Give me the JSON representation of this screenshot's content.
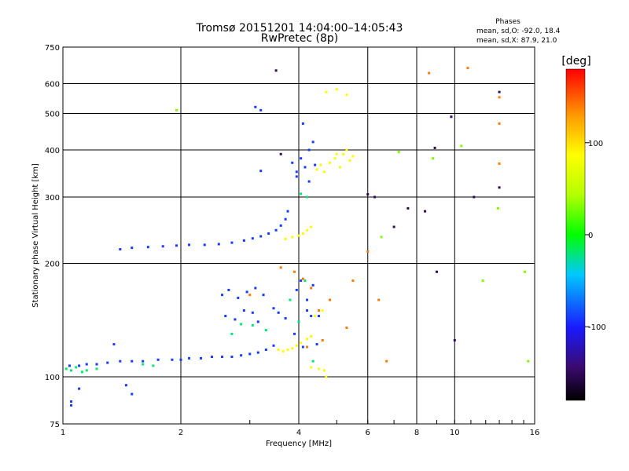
{
  "chart_data": {
    "type": "scatter",
    "title": "Tromsø 20151201 14:04:00–14:05:43",
    "subtitle": "RwPretec (8p)",
    "xlabel": "Frequency [MHz]",
    "ylabel": "Stationary phase Virtual Height [km]",
    "x_scale": "log",
    "y_scale": "log",
    "xlim": [
      1,
      16
    ],
    "ylim": [
      75,
      750
    ],
    "x_ticks": [
      1,
      2,
      4,
      6,
      8,
      10,
      16
    ],
    "x_tick_labels": [
      "1",
      "2",
      "4",
      "6",
      "8",
      "10",
      "16"
    ],
    "y_ticks": [
      75,
      100,
      200,
      300,
      400,
      500,
      600,
      750
    ],
    "y_tick_labels": [
      "75",
      "100",
      "200",
      "300",
      "400",
      "500",
      "600",
      "750"
    ],
    "grid": true,
    "colorbar": {
      "label": "[deg]",
      "range": [
        -180,
        180
      ],
      "tick_values": [
        100,
        0,
        -100
      ],
      "tick_labels": [
        "100",
        "0",
        "-100"
      ]
    },
    "stats": {
      "header": "Phases",
      "lines": [
        "mean, sd,O: -92.0, 18.4",
        "mean, sd,X: 87.9, 21.0"
      ]
    },
    "series": [
      {
        "color_value": -90,
        "x": [
          1.04,
          1.1,
          1.15,
          1.22,
          1.3,
          1.4,
          1.5,
          1.6,
          1.75,
          1.9,
          2.0,
          2.1,
          2.25,
          2.4,
          2.55,
          2.7,
          2.85,
          3.0,
          3.15,
          3.3,
          3.45,
          1.4,
          1.5,
          1.65,
          1.8,
          1.95,
          2.1,
          2.3,
          2.5,
          2.7,
          2.9,
          3.05,
          3.2,
          3.35,
          3.5,
          3.6,
          3.7,
          3.75,
          2.55,
          2.65,
          2.8,
          2.95,
          3.1,
          3.25,
          2.6,
          2.75,
          2.9,
          3.05,
          3.15,
          3.45,
          3.55,
          3.7,
          3.2,
          3.85,
          3.95,
          4.05,
          4.15,
          4.25,
          4.35,
          3.95,
          4.1,
          4.25,
          4.4,
          3.95,
          4.05,
          4.2,
          4.35,
          4.2,
          3.9,
          4.0,
          4.1,
          3.1,
          3.2,
          1.05,
          1.35,
          1.1,
          1.05,
          1.45,
          1.5,
          4.3,
          4.5,
          4.45
        ],
        "y": [
          107,
          107,
          108,
          108,
          109,
          110,
          110,
          110,
          111,
          111,
          111,
          112,
          112,
          113,
          113,
          113,
          114,
          115,
          116,
          118,
          121,
          218,
          220,
          221,
          222,
          223,
          224,
          224,
          225,
          227,
          230,
          233,
          236,
          240,
          245,
          252,
          262,
          275,
          165,
          170,
          162,
          168,
          172,
          165,
          145,
          142,
          150,
          148,
          140,
          152,
          148,
          143,
          352,
          370,
          350,
          380,
          360,
          400,
          420,
          340,
          470,
          330,
          365,
          170,
          180,
          160,
          175,
          150,
          130,
          140,
          120,
          520,
          510,
          86,
          122,
          93,
          84,
          95,
          90,
          145,
          145,
          122
        ]
      },
      {
        "color_value": 85,
        "x": [
          3.55,
          3.65,
          3.75,
          3.85,
          3.95,
          4.05,
          4.2,
          4.3,
          3.7,
          3.85,
          4.0,
          4.1,
          4.2,
          4.3,
          4.45,
          4.55,
          4.65,
          4.8,
          4.95,
          5.1,
          5.2,
          5.3,
          5.4,
          5.5,
          4.7,
          5.0,
          5.3,
          4.3,
          4.5,
          4.65,
          4.7,
          4.4,
          4.6,
          5.0
        ],
        "y": [
          118,
          117,
          118,
          119,
          121,
          123,
          126,
          128,
          232,
          235,
          237,
          240,
          245,
          250,
          355,
          365,
          350,
          370,
          380,
          360,
          390,
          400,
          375,
          385,
          570,
          580,
          560,
          106,
          105,
          104,
          100,
          145,
          150,
          390
        ]
      },
      {
        "color_value": -20,
        "x": [
          1.02,
          1.05,
          1.08,
          1.12,
          1.15,
          1.22,
          1.6,
          1.7,
          3.05,
          3.3,
          4.05,
          4.2,
          4.15,
          4.35,
          4.0,
          3.8,
          2.85,
          2.7
        ],
        "y": [
          105,
          104,
          106,
          103,
          104,
          105,
          108,
          107,
          137,
          133,
          306,
          300,
          180,
          110,
          140,
          160,
          138,
          130
        ]
      },
      {
        "color_value": 140,
        "x": [
          3.6,
          3.9,
          4.1,
          4.3,
          4.5,
          4.8,
          5.3,
          6.0,
          6.4,
          8.6,
          10.8,
          13.0,
          13.0,
          13.0,
          4.2,
          4.6,
          5.5,
          3.0,
          6.7
        ],
        "y": [
          195,
          190,
          182,
          172,
          150,
          160,
          135,
          215,
          160,
          640,
          660,
          552,
          470,
          368,
          120,
          125,
          180,
          165,
          110
        ]
      },
      {
        "color_value": -150,
        "x": [
          3.5,
          6.0,
          6.25,
          7.6,
          8.4,
          9.8,
          10.0,
          13.0,
          13.0,
          8.9,
          9.0,
          11.2,
          3.6,
          7.0
        ],
        "y": [
          650,
          305,
          300,
          280,
          275,
          490,
          125,
          570,
          318,
          405,
          190,
          300,
          390,
          250
        ]
      },
      {
        "color_value": 30,
        "x": [
          1.95,
          12.9,
          15.1,
          15.4,
          11.8,
          8.8,
          7.2,
          10.4,
          6.5
        ],
        "y": [
          510,
          280,
          190,
          110,
          180,
          380,
          395,
          410,
          235
        ]
      }
    ]
  }
}
